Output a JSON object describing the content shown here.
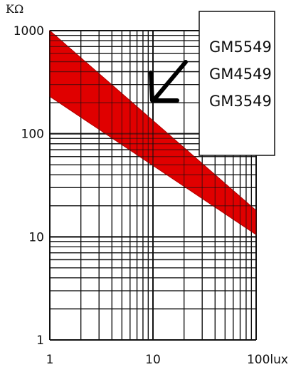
{
  "chart_data": {
    "type": "area",
    "title": "",
    "xlabel": "",
    "ylabel": "",
    "y_unit": "KΩ",
    "x_scale": "log",
    "y_scale": "log",
    "xlim": [
      1,
      100
    ],
    "ylim": [
      1,
      1000
    ],
    "grid": true,
    "x_ticks": [
      {
        "value": 1,
        "label": "1"
      },
      {
        "value": 10,
        "label": "10"
      },
      {
        "value": 100,
        "label": "100lux"
      }
    ],
    "y_ticks": [
      {
        "value": 1000,
        "label": "1000"
      },
      {
        "value": 100,
        "label": "100"
      },
      {
        "value": 10,
        "label": "10"
      },
      {
        "value": 1,
        "label": "1"
      }
    ],
    "series": [
      {
        "name": "GM5549 / GM4549 / GM3549",
        "color": "#e00000",
        "x": [
          1,
          100
        ],
        "upper": [
          1000,
          18
        ],
        "lower": [
          230,
          10.5
        ]
      }
    ],
    "legend": {
      "placement": "top-right",
      "entries": [
        "GM5549",
        "GM4549",
        "GM3549"
      ]
    }
  }
}
